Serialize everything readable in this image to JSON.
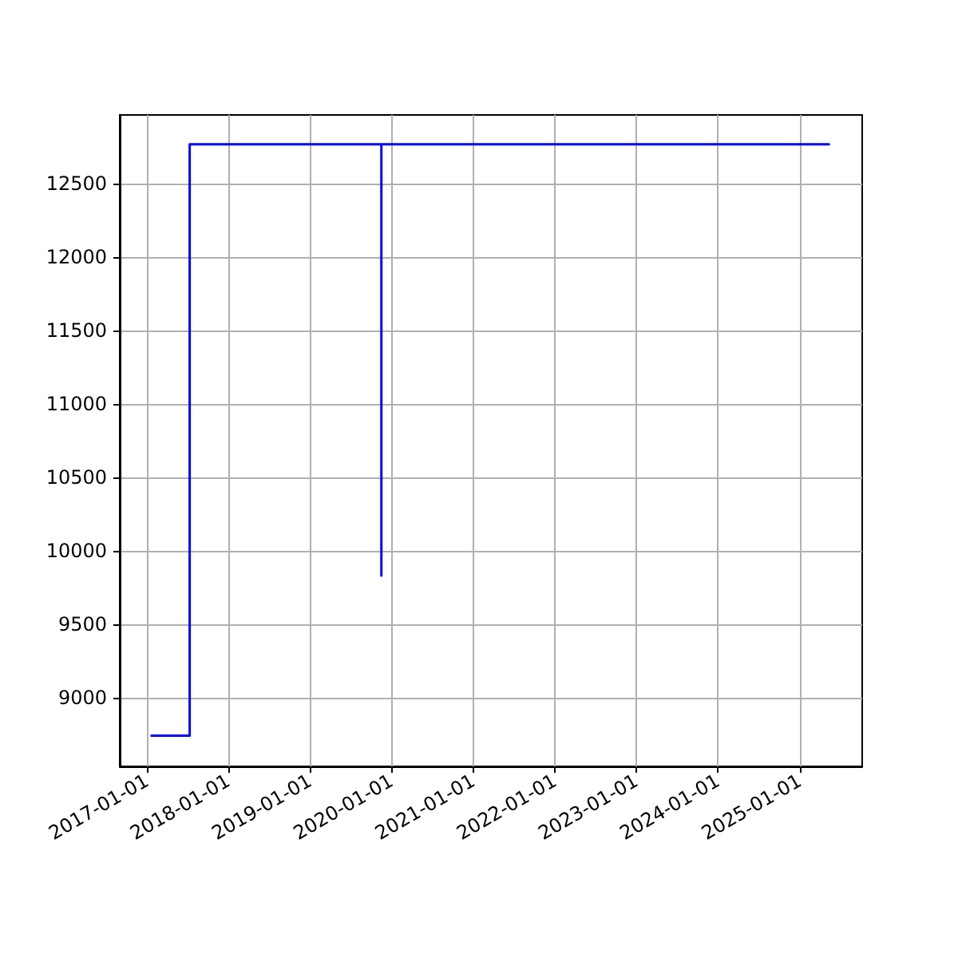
{
  "chart_data": {
    "type": "line",
    "x": [
      "2017-01-22",
      "2017-07-12",
      "2017-07-12",
      "2019-11-17",
      "2019-11-17",
      "2019-11-17",
      "2025-05-12"
    ],
    "series": [
      {
        "color": "#0000ff",
        "values": [
          8740,
          8740,
          12770,
          12770,
          9830,
          12770,
          12770
        ]
      }
    ],
    "xlim": [
      "2016-09-02",
      "2025-10-08"
    ],
    "xticks": [
      "2017-01-01",
      "2018-01-01",
      "2019-01-01",
      "2020-01-01",
      "2021-01-01",
      "2022-01-01",
      "2023-01-01",
      "2024-01-01",
      "2025-01-01"
    ],
    "ylim": [
      8530,
      12970
    ],
    "yticks": [
      9000,
      9500,
      10000,
      10500,
      11000,
      11500,
      12000,
      12500
    ],
    "grid": true,
    "marker": "none",
    "line_style": "solid"
  }
}
